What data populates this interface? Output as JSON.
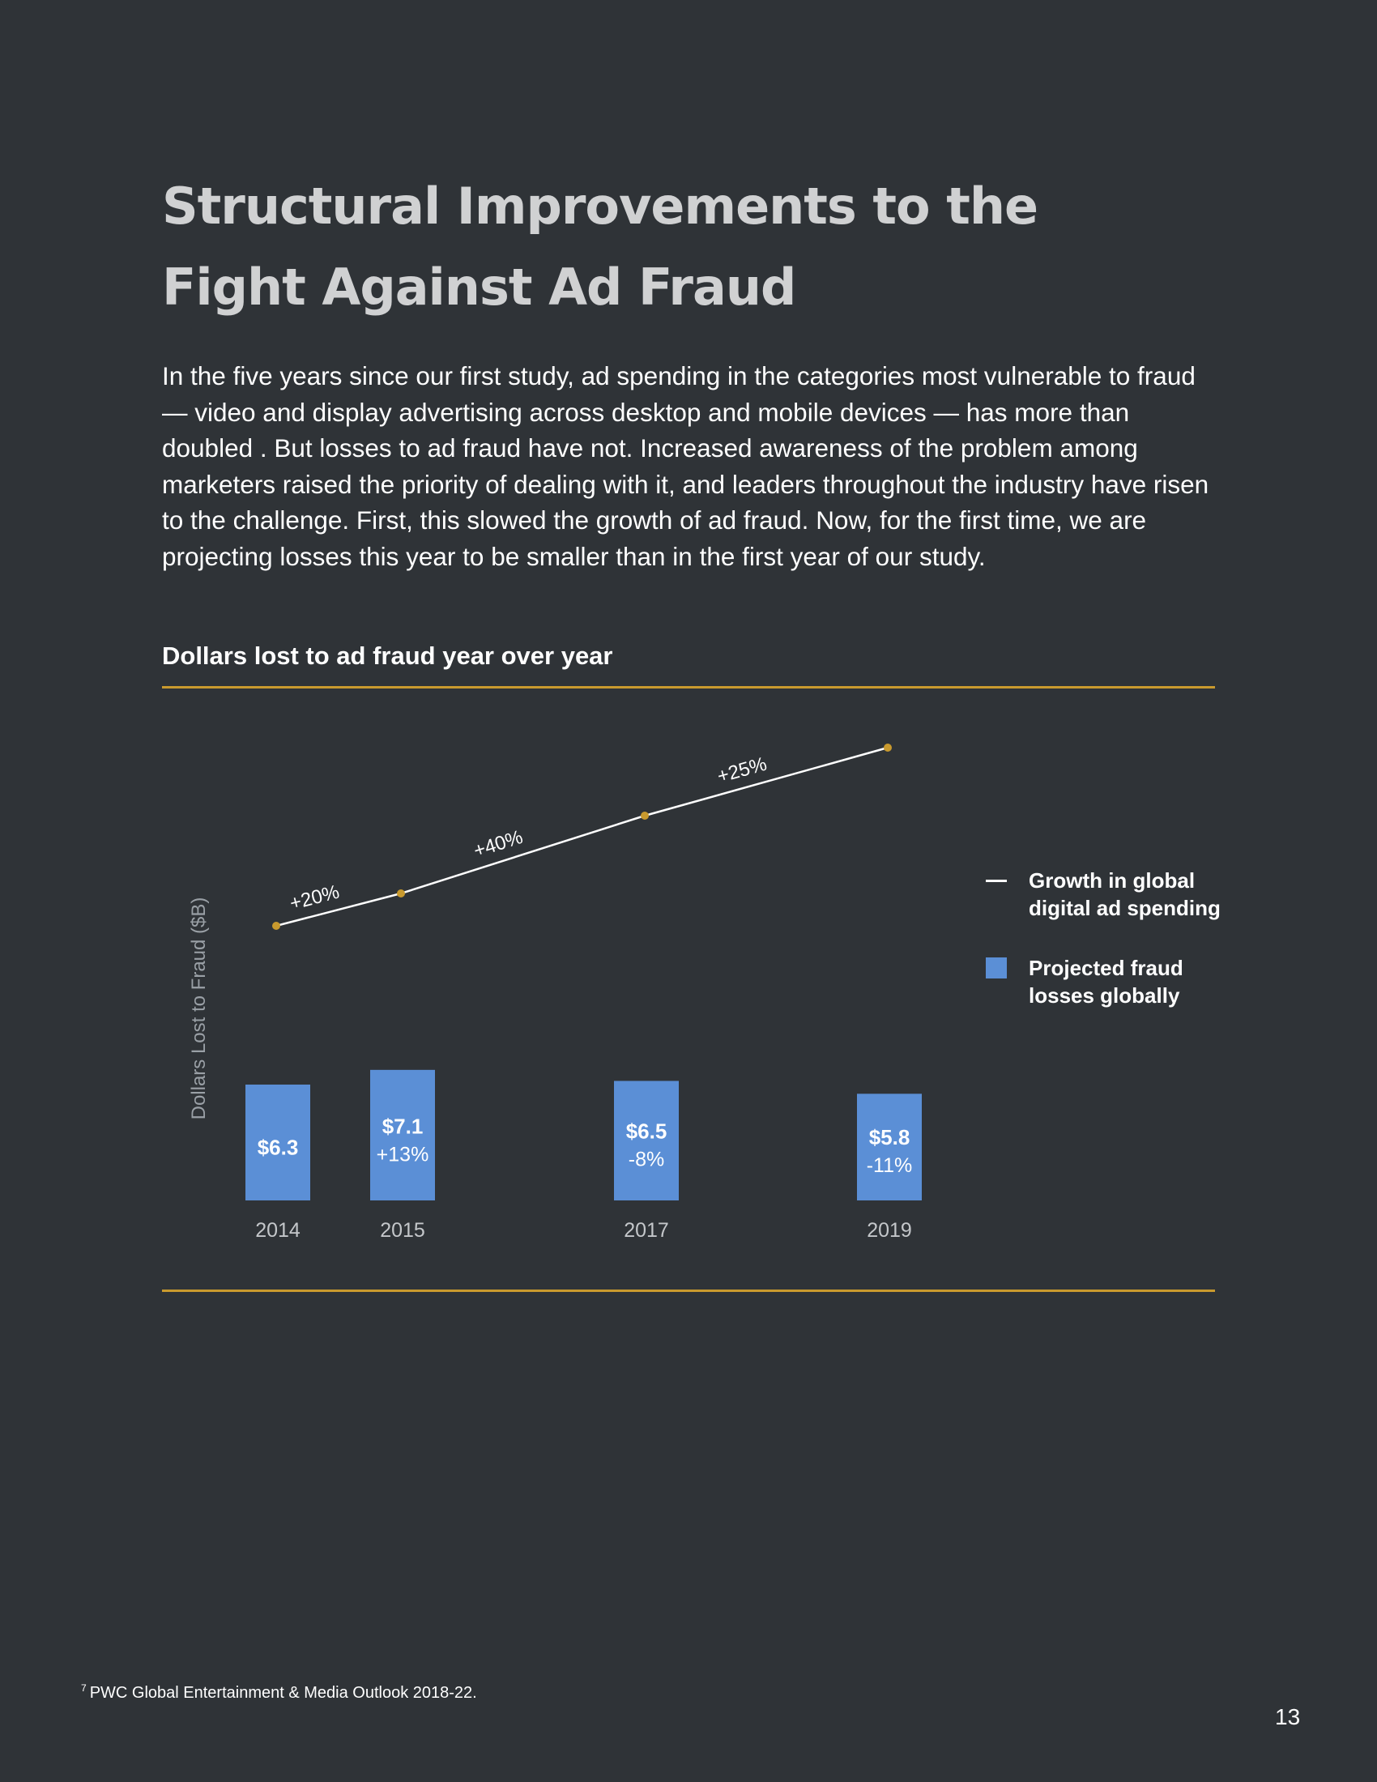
{
  "page": {
    "title": "Structural Improvements to the Fight Against Ad Fraud",
    "intro": "In the five years since our first study, ad spending in the categories most vulnerable to fraud — video and display advertising across desktop and mobile devices — has more than doubled . But losses to ad fraud have not. Increased awareness of the problem among marketers raised the priority of dealing with it, and leaders throughout the industry have risen to the challenge. First, this slowed the growth of ad fraud. Now, for the first time, we are projecting losses this year to be smaller than in the first year of our study.",
    "footnote_marker": "7",
    "footnote": "PWC Global Entertainment & Media Outlook 2018-22.",
    "page_number": "13"
  },
  "colors": {
    "background": "#2f3337",
    "accent_rule": "#c99a2e",
    "bar": "#5b8fd6",
    "line": "#ffffff",
    "line_marker": "#c99a2e",
    "title": "#d0d1d2"
  },
  "chart_data": {
    "type": "bar",
    "title": "Dollars lost to ad fraud year over year",
    "ylabel": "Dollars Lost to Fraud ($B)",
    "xlabel": "",
    "categories": [
      "2014",
      "2015",
      "2017",
      "2019"
    ],
    "ylim": [
      0,
      10
    ],
    "series": [
      {
        "name": "Projected fraud losses globally",
        "type": "bar",
        "values": [
          6.3,
          7.1,
          6.5,
          5.8
        ],
        "value_labels": [
          "$6.3",
          "$7.1",
          "$6.5",
          "$5.8"
        ],
        "change_labels": [
          "",
          "+13%",
          "-8%",
          "-11%"
        ]
      },
      {
        "name": "Growth in global digital ad spending",
        "type": "line",
        "values": [
          100,
          120,
          168,
          210
        ],
        "segment_labels": [
          "+20%",
          "+40%",
          "+25%"
        ]
      }
    ],
    "legend": {
      "placement": "right",
      "line_label_lines": [
        "Growth in global",
        "digital ad spending"
      ],
      "bar_label_lines": [
        "Projected fraud",
        "losses globally"
      ]
    },
    "grid": false
  }
}
